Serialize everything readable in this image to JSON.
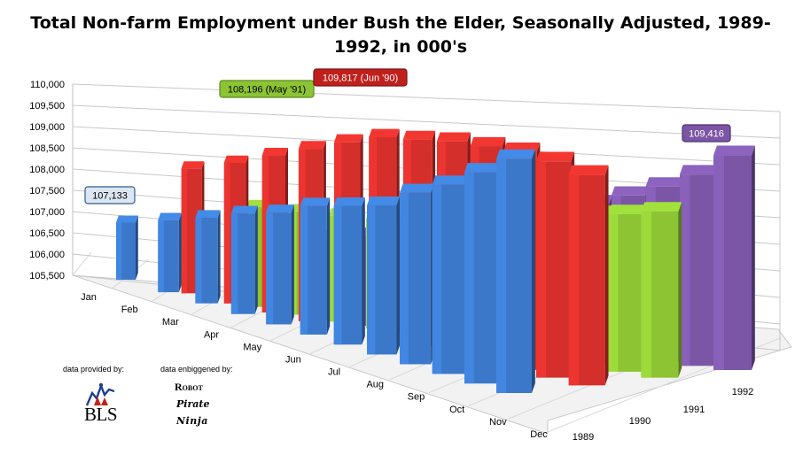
{
  "chart_data": {
    "type": "bar3d",
    "title": "Total Non-farm Employment under Bush the Elder, Seasonally Adjusted, 1989-1992, in 000's",
    "title_lines": [
      "Total Non-farm Employment under Bush the Elder, Seasonally Adjusted, 1989-",
      "1992, in 000's"
    ],
    "categories": [
      "Jan",
      "Feb",
      "Mar",
      "Apr",
      "May",
      "Jun",
      "Jul",
      "Aug",
      "Sep",
      "Oct",
      "Nov",
      "Dec"
    ],
    "yticks": [
      "105,500",
      "106,000",
      "106,500",
      "107,000",
      "107,500",
      "108,000",
      "108,500",
      "109,000",
      "109,500",
      "110,000"
    ],
    "ylim": [
      105500,
      110000
    ],
    "series": [
      {
        "name": "1989",
        "color": "#3b78c9",
        "values": [
          107133,
          107400,
          107600,
          107800,
          107900,
          108100,
          108150,
          108200,
          108450,
          108600,
          108800,
          109000
        ]
      },
      {
        "name": "1990",
        "color": "#d42f2b",
        "values": [
          109300,
          109450,
          109600,
          109700,
          109780,
          109817,
          109700,
          109600,
          109450,
          109300,
          109100,
          108850
        ]
      },
      {
        "name": "1991",
        "color": "#8cc434",
        "values": [
          108750,
          108600,
          108450,
          108350,
          108196,
          108250,
          108260,
          108280,
          108300,
          108310,
          108300,
          108320
        ]
      },
      {
        "name": "1992",
        "color": "#7b56a6",
        "values": [
          108400,
          108430,
          108500,
          108550,
          108600,
          108700,
          108760,
          108800,
          108900,
          109000,
          109150,
          109416
        ]
      }
    ],
    "annotations": [
      {
        "series": "1989",
        "month": "Jan",
        "label": "107,133",
        "fill": "#dce6f2",
        "stroke": "#2e5c8f",
        "text_color": "#000000"
      },
      {
        "series": "1991",
        "month": "May",
        "label": "108,196 (May '91)",
        "fill": "#8cc434",
        "stroke": "#5b8a1d",
        "text_color": "#000000"
      },
      {
        "series": "1990",
        "month": "Jun",
        "label": "109,817 (Jun '90)",
        "fill": "#c0201c",
        "stroke": "#7d1210",
        "text_color": "#ffffff"
      },
      {
        "series": "1992",
        "month": "Dec",
        "label": "109,416",
        "fill": "#7b56a6",
        "stroke": "#4d3370",
        "text_color": "#ffffff"
      }
    ]
  },
  "credits": {
    "provided_by": "data provided by:",
    "enbiggened_by": "data enbiggened by:",
    "bls_logo_text": "BLS",
    "robot": "Robot",
    "pirate": "Pirate",
    "ninja": "Ninja"
  }
}
